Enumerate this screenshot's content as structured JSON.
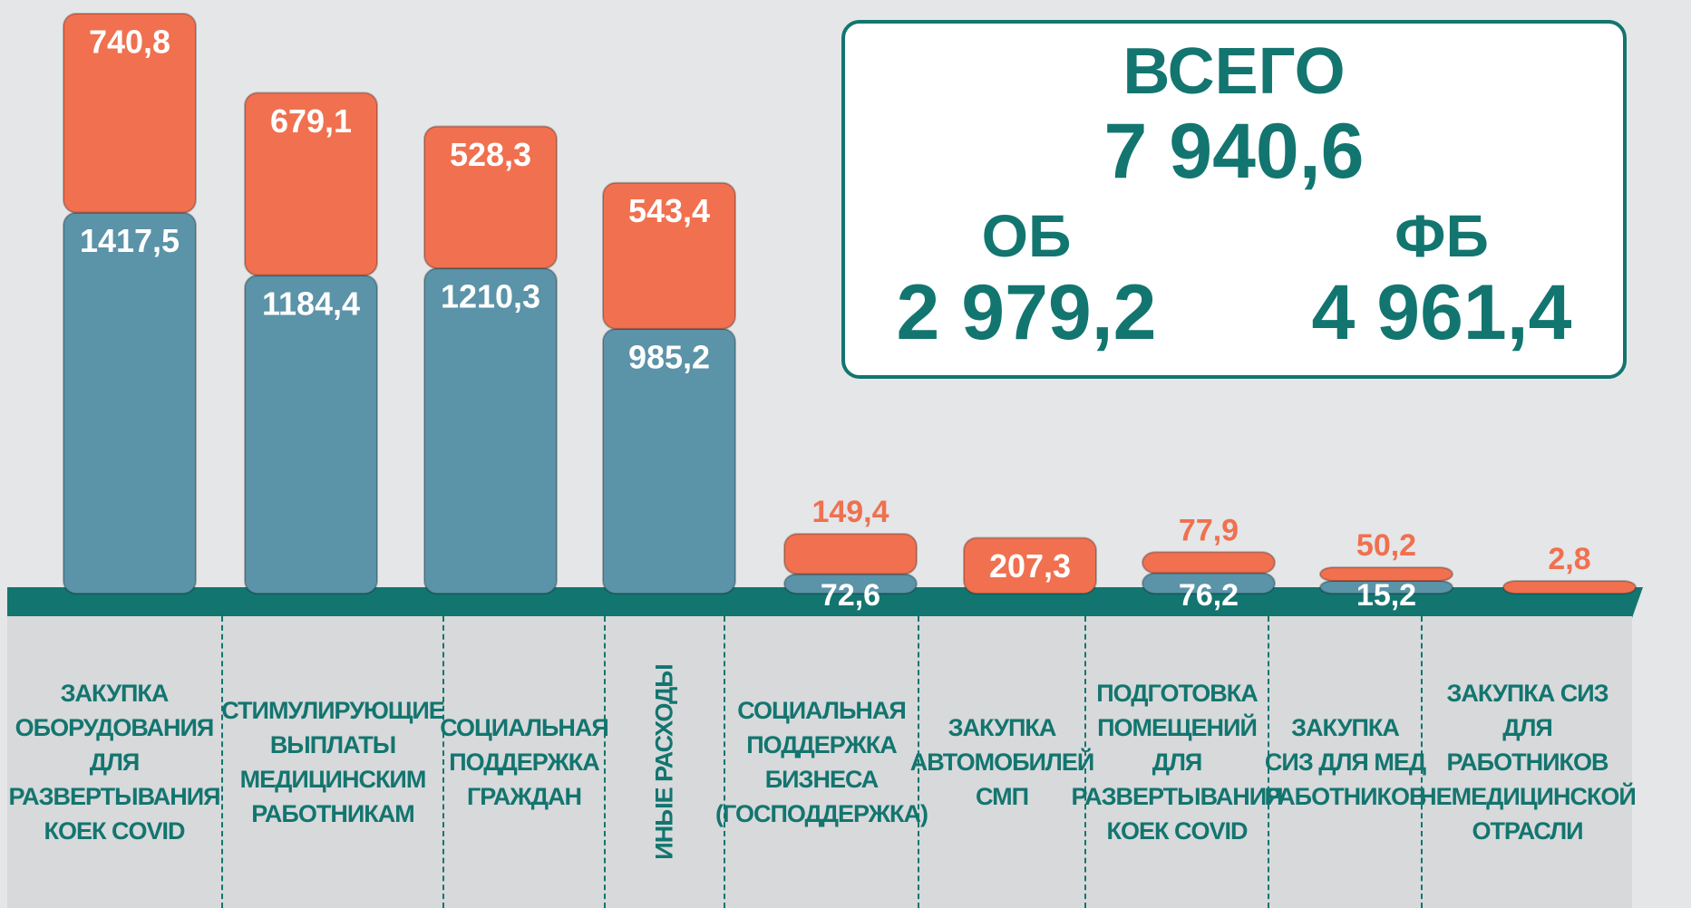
{
  "chart_data": {
    "type": "bar",
    "categories": [
      "ЗАКУПКА ОБОРУДОВАНИЯ ДЛЯ РАЗВЕРТЫВАНИЯ КОЕК COVID",
      "СТИМУЛИРУЮЩИЕ ВЫПЛАТЫ МЕДИЦИНСКИМ РАБОТНИКАМ",
      "СОЦИАЛЬНАЯ ПОДДЕРЖКА ГРАЖДАН",
      "ИНЫЕ РАСХОДЫ",
      "СОЦИАЛЬНАЯ ПОДДЕРЖКА БИЗНЕСА (ГОСПОДДЕРЖКА)",
      "ЗАКУПКА АВТОМОБИЛЕЙ СМП",
      "ПОДГОТОВКА ПОМЕЩЕНИЙ ДЛЯ РАЗВЕРТЫВАНИЯ КОЕК COVID",
      "ЗАКУПКА СИЗ ДЛЯ МЕД РАБОТНИКОВ",
      "ЗАКУПКА СИЗ ДЛЯ РАБОТНИКОВ НЕМЕДИЦИНСКОЙ ОТРАСЛИ"
    ],
    "series": [
      {
        "color": "#5b93a8",
        "values": [
          1417.5,
          1184.4,
          1210.3,
          985.2,
          72.6,
          null,
          76.2,
          15.2,
          null
        ],
        "value_labels": [
          "1417,5",
          "1184,4",
          "1210,3",
          "985,2",
          "72,6",
          null,
          "76,2",
          "15,2",
          null
        ]
      },
      {
        "color": "#f0704f",
        "values": [
          740.8,
          679.1,
          528.3,
          543.4,
          149.4,
          207.3,
          77.9,
          50.2,
          2.8
        ],
        "value_labels": [
          "740,8",
          "679,1",
          "528,3",
          "543,4",
          "149,4",
          "207,3",
          "77,9",
          "50,2",
          "2,8"
        ]
      }
    ]
  },
  "summary": {
    "total_label": "ВСЕГО",
    "total": "7 940,6",
    "ob_label": "ОБ",
    "ob": "2 979,2",
    "fb_label": "ФБ",
    "fb": "4 961,4"
  }
}
